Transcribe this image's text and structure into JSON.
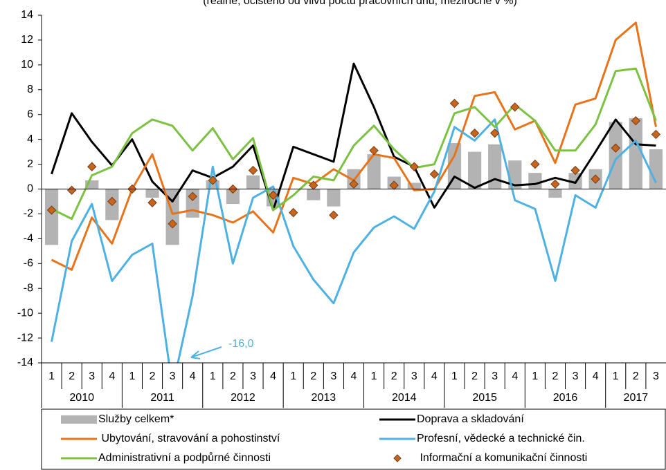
{
  "chart_data": {
    "type": "combo",
    "subtitle": "(reálně, očištěno od vlivu počtu pracovních dnů, meziročně v %)",
    "categories": [
      "1",
      "2",
      "3",
      "4",
      "1",
      "2",
      "3",
      "4",
      "1",
      "2",
      "3",
      "4",
      "1",
      "2",
      "3",
      "4",
      "1",
      "2",
      "3",
      "4",
      "1",
      "2",
      "3",
      "4",
      "1",
      "2",
      "3",
      "4",
      "1",
      "2",
      "3"
    ],
    "years": [
      "2010",
      "2011",
      "2012",
      "2013",
      "2014",
      "2015",
      "2016",
      "2017"
    ],
    "ylim": [
      -14,
      14
    ],
    "yticks": [
      -14,
      -12,
      -10,
      -8,
      -6,
      -4,
      -2,
      0,
      2,
      4,
      6,
      8,
      10,
      12,
      14
    ],
    "annotation": "-16,0",
    "series": [
      {
        "name": "Služby celkem*",
        "type": "bar",
        "color": "#b3b3b3",
        "values": [
          -4.5,
          0,
          0.7,
          -2.5,
          0,
          -0.7,
          -4.5,
          -2.3,
          0.7,
          -1.2,
          1.1,
          -1.4,
          0,
          -0.9,
          -1.4,
          1.6,
          2.8,
          1.0,
          0.5,
          0,
          3.7,
          3.0,
          3.6,
          2.3,
          1.3,
          -0.7,
          1.3,
          1.6,
          5.4,
          5.7,
          3.2
        ]
      },
      {
        "name": "Doprava a skladování",
        "type": "line",
        "color": "#000000",
        "values": [
          1.2,
          6.1,
          3.8,
          1.9,
          4.0,
          0.6,
          -1.0,
          1.5,
          0.9,
          1.8,
          3.5,
          -1.7,
          3.4,
          2.8,
          2.2,
          10.1,
          6.6,
          2.6,
          1.8,
          -1.5,
          1.0,
          0.1,
          0.8,
          0.3,
          0.4,
          0.9,
          0.5,
          3.0,
          5.6,
          3.6,
          3.5
        ]
      },
      {
        "name": " Ubytování, stravování a pohostinství",
        "type": "line",
        "color": "#e8731a",
        "values": [
          -5.7,
          -6.5,
          -2.3,
          -4.4,
          0.0,
          2.8,
          -2.0,
          -1.7,
          -2.1,
          -2.7,
          -1.8,
          -3.5,
          0.9,
          0.4,
          1.6,
          0.7,
          2.8,
          2.5,
          -0.1,
          0.0,
          2.7,
          7.5,
          7.8,
          4.8,
          5.5,
          2.1,
          6.8,
          7.3,
          12.0,
          13.4,
          5.0
        ]
      },
      {
        "name": "Profesní, vědecké a technické čin.",
        "type": "line",
        "color": "#4db1e3",
        "values": [
          -12.3,
          -4.2,
          -1.2,
          -7.4,
          -5.3,
          -4.4,
          -16.0,
          -8.6,
          1.8,
          -6.0,
          -0.7,
          0.2,
          -4.6,
          -7.3,
          -9.2,
          -5.1,
          -3.1,
          -2.2,
          -3.2,
          -0.2,
          5.0,
          3.9,
          5.6,
          -0.9,
          -1.6,
          -7.4,
          -0.5,
          -1.5,
          2.4,
          3.9,
          0.5
        ]
      },
      {
        "name": "Administrativní a podpůrné činnosti",
        "type": "line",
        "color": "#7cc242",
        "values": [
          -1.6,
          -2.4,
          1.1,
          1.8,
          4.5,
          5.6,
          5.1,
          3.1,
          4.9,
          2.4,
          4.1,
          -1.7,
          -0.5,
          1.0,
          0.7,
          3.5,
          5.1,
          3.2,
          1.7,
          2.0,
          6.1,
          6.6,
          5.0,
          6.8,
          5.5,
          3.1,
          3.1,
          5.2,
          9.5,
          9.7,
          5.5
        ]
      },
      {
        "name": " Informační a komunikační činnosti",
        "type": "scatter",
        "color": "#c4661f",
        "values": [
          -1.7,
          -0.1,
          1.8,
          -1.0,
          0.0,
          -1.1,
          -2.8,
          -0.6,
          0.7,
          0.0,
          1.5,
          -0.5,
          -1.9,
          0.3,
          -2.1,
          0.4,
          3.1,
          0.3,
          1.8,
          1.2,
          6.9,
          4.5,
          4.5,
          6.6,
          2.0,
          0.4,
          1.5,
          0.8,
          3.3,
          5.5,
          4.4
        ]
      }
    ]
  }
}
